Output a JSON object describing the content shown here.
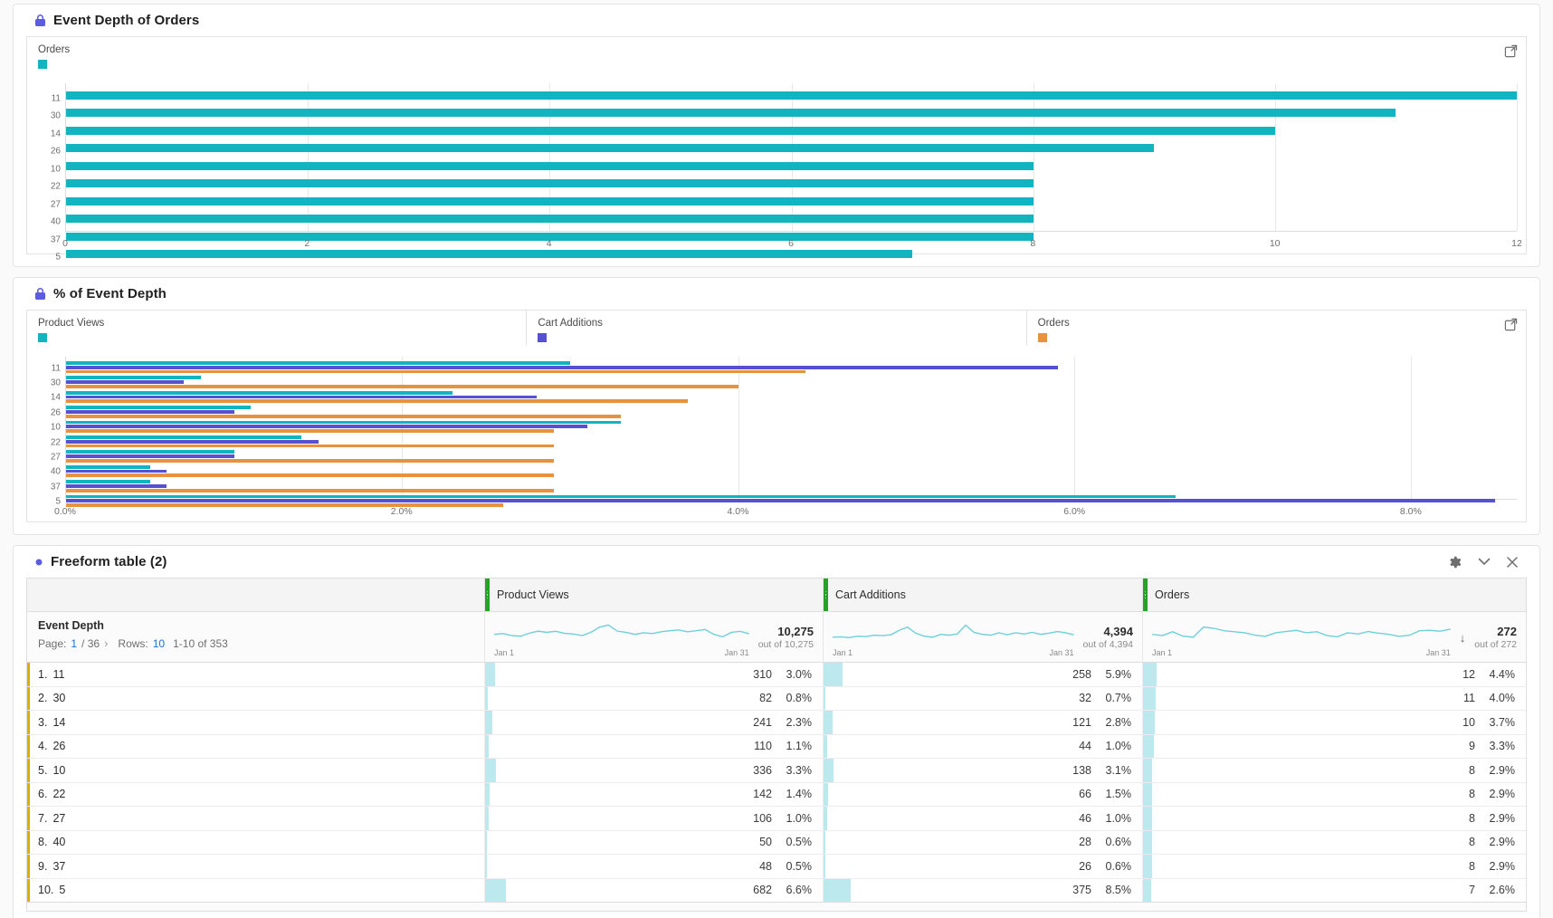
{
  "colors": {
    "teal": "#12b5bf",
    "purple": "#5551d2",
    "orange": "#e8923e",
    "pale_teal": "#bce9ed",
    "sparkline": "#6fd0d9",
    "green_handle": "#26a226",
    "yellow_dim": "#d7b006",
    "link_blue": "#1473e6",
    "lock_purple": "#5c5ce0"
  },
  "panels": {
    "orders_chart": {
      "title": "Event Depth of Orders",
      "legend": [
        {
          "label": "Orders",
          "color": "#12b5bf"
        }
      ]
    },
    "pct_chart": {
      "title": "% of Event Depth",
      "legend": [
        {
          "label": "Product Views",
          "color": "#12b5bf"
        },
        {
          "label": "Cart Additions",
          "color": "#5551d2"
        },
        {
          "label": "Orders",
          "color": "#e8923e"
        }
      ]
    },
    "freeform": {
      "title": "Freeform table (2)",
      "columns": [
        "Product Views",
        "Cart Additions",
        "Orders"
      ],
      "dimension": {
        "name": "Event Depth",
        "page_label": "Page:",
        "page_current": "1",
        "page_total": "/ 36",
        "next_arrow": "›",
        "rows_label": "Rows:",
        "rows_value": "10",
        "range_text": "1-10 of 353"
      },
      "totals": [
        {
          "total": "10,275",
          "out_of": "out of 10,275",
          "start": "Jan 1",
          "end": "Jan 31",
          "sorted": false,
          "spark": [
            0.42,
            0.46,
            0.36,
            0.33,
            0.48,
            0.58,
            0.52,
            0.57,
            0.47,
            0.44,
            0.36,
            0.52,
            0.78,
            0.88,
            0.58,
            0.52,
            0.42,
            0.5,
            0.46,
            0.55,
            0.6,
            0.64,
            0.55,
            0.6,
            0.66,
            0.42,
            0.3,
            0.52,
            0.57,
            0.45
          ]
        },
        {
          "total": "4,394",
          "out_of": "out of 4,394",
          "start": "Jan 1",
          "end": "Jan 31",
          "sorted": false,
          "spark": [
            0.28,
            0.3,
            0.26,
            0.33,
            0.31,
            0.38,
            0.36,
            0.4,
            0.62,
            0.78,
            0.48,
            0.33,
            0.28,
            0.42,
            0.38,
            0.44,
            0.88,
            0.52,
            0.42,
            0.38,
            0.5,
            0.4,
            0.5,
            0.44,
            0.52,
            0.42,
            0.48,
            0.56,
            0.5,
            0.4
          ]
        },
        {
          "total": "272",
          "out_of": "out of 272",
          "start": "Jan 1",
          "end": "Jan 31",
          "sorted": true,
          "spark": [
            0.42,
            0.36,
            0.55,
            0.33,
            0.28,
            0.78,
            0.72,
            0.6,
            0.55,
            0.5,
            0.38,
            0.32,
            0.5,
            0.56,
            0.62,
            0.5,
            0.55,
            0.36,
            0.3,
            0.5,
            0.44,
            0.56,
            0.48,
            0.42,
            0.32,
            0.38,
            0.6,
            0.62,
            0.58,
            0.68
          ]
        }
      ],
      "rows": [
        {
          "rank": "1.",
          "depth": "11",
          "cells": [
            {
              "value": "310",
              "pct": "3.0%"
            },
            {
              "value": "258",
              "pct": "5.9%"
            },
            {
              "value": "12",
              "pct": "4.4%"
            }
          ]
        },
        {
          "rank": "2.",
          "depth": "30",
          "cells": [
            {
              "value": "82",
              "pct": "0.8%"
            },
            {
              "value": "32",
              "pct": "0.7%"
            },
            {
              "value": "11",
              "pct": "4.0%"
            }
          ]
        },
        {
          "rank": "3.",
          "depth": "14",
          "cells": [
            {
              "value": "241",
              "pct": "2.3%"
            },
            {
              "value": "121",
              "pct": "2.8%"
            },
            {
              "value": "10",
              "pct": "3.7%"
            }
          ]
        },
        {
          "rank": "4.",
          "depth": "26",
          "cells": [
            {
              "value": "110",
              "pct": "1.1%"
            },
            {
              "value": "44",
              "pct": "1.0%"
            },
            {
              "value": "9",
              "pct": "3.3%"
            }
          ]
        },
        {
          "rank": "5.",
          "depth": "10",
          "cells": [
            {
              "value": "336",
              "pct": "3.3%"
            },
            {
              "value": "138",
              "pct": "3.1%"
            },
            {
              "value": "8",
              "pct": "2.9%"
            }
          ]
        },
        {
          "rank": "6.",
          "depth": "22",
          "cells": [
            {
              "value": "142",
              "pct": "1.4%"
            },
            {
              "value": "66",
              "pct": "1.5%"
            },
            {
              "value": "8",
              "pct": "2.9%"
            }
          ]
        },
        {
          "rank": "7.",
          "depth": "27",
          "cells": [
            {
              "value": "106",
              "pct": "1.0%"
            },
            {
              "value": "46",
              "pct": "1.0%"
            },
            {
              "value": "8",
              "pct": "2.9%"
            }
          ]
        },
        {
          "rank": "8.",
          "depth": "40",
          "cells": [
            {
              "value": "50",
              "pct": "0.5%"
            },
            {
              "value": "28",
              "pct": "0.6%"
            },
            {
              "value": "8",
              "pct": "2.9%"
            }
          ]
        },
        {
          "rank": "9.",
          "depth": "37",
          "cells": [
            {
              "value": "48",
              "pct": "0.5%"
            },
            {
              "value": "26",
              "pct": "0.6%"
            },
            {
              "value": "8",
              "pct": "2.9%"
            }
          ]
        },
        {
          "rank": "10.",
          "depth": "5",
          "cells": [
            {
              "value": "682",
              "pct": "6.6%"
            },
            {
              "value": "375",
              "pct": "8.5%"
            },
            {
              "value": "7",
              "pct": "2.6%"
            }
          ]
        }
      ]
    }
  },
  "chart_data": [
    {
      "type": "bar",
      "orientation": "horizontal",
      "title": "Event Depth of Orders",
      "categories": [
        "11",
        "30",
        "14",
        "26",
        "10",
        "22",
        "27",
        "40",
        "37",
        "5"
      ],
      "series": [
        {
          "name": "Orders",
          "color": "#12b5bf",
          "values": [
            12,
            11,
            10,
            9,
            8,
            8,
            8,
            8,
            8,
            7
          ]
        }
      ],
      "xlabel": "",
      "ylabel": "Event Depth",
      "xlim": [
        0,
        12
      ],
      "xticks": [
        0,
        2,
        4,
        6,
        8,
        10,
        12
      ],
      "xtick_labels": [
        "0",
        "2",
        "4",
        "6",
        "8",
        "10",
        "12"
      ],
      "grid": true,
      "legend_position": "top-left"
    },
    {
      "type": "bar",
      "orientation": "horizontal",
      "title": "% of Event Depth",
      "categories": [
        "11",
        "30",
        "14",
        "26",
        "10",
        "22",
        "27",
        "40",
        "37",
        "5"
      ],
      "series": [
        {
          "name": "Product Views",
          "color": "#12b5bf",
          "values": [
            3.0,
            0.8,
            2.3,
            1.1,
            3.3,
            1.4,
            1.0,
            0.5,
            0.5,
            6.6
          ]
        },
        {
          "name": "Cart Additions",
          "color": "#5551d2",
          "values": [
            5.9,
            0.7,
            2.8,
            1.0,
            3.1,
            1.5,
            1.0,
            0.6,
            0.6,
            8.5
          ]
        },
        {
          "name": "Orders",
          "color": "#e8923e",
          "values": [
            4.4,
            4.0,
            3.7,
            3.3,
            2.9,
            2.9,
            2.9,
            2.9,
            2.9,
            2.6
          ]
        }
      ],
      "xlabel": "",
      "ylabel": "Event Depth",
      "xlim": [
        0,
        8.63
      ],
      "xticks": [
        0,
        2,
        4,
        6,
        8
      ],
      "xtick_labels": [
        "0.0%",
        "2.0%",
        "4.0%",
        "6.0%",
        "8.0%"
      ],
      "grid": true,
      "legend_position": "top"
    }
  ]
}
